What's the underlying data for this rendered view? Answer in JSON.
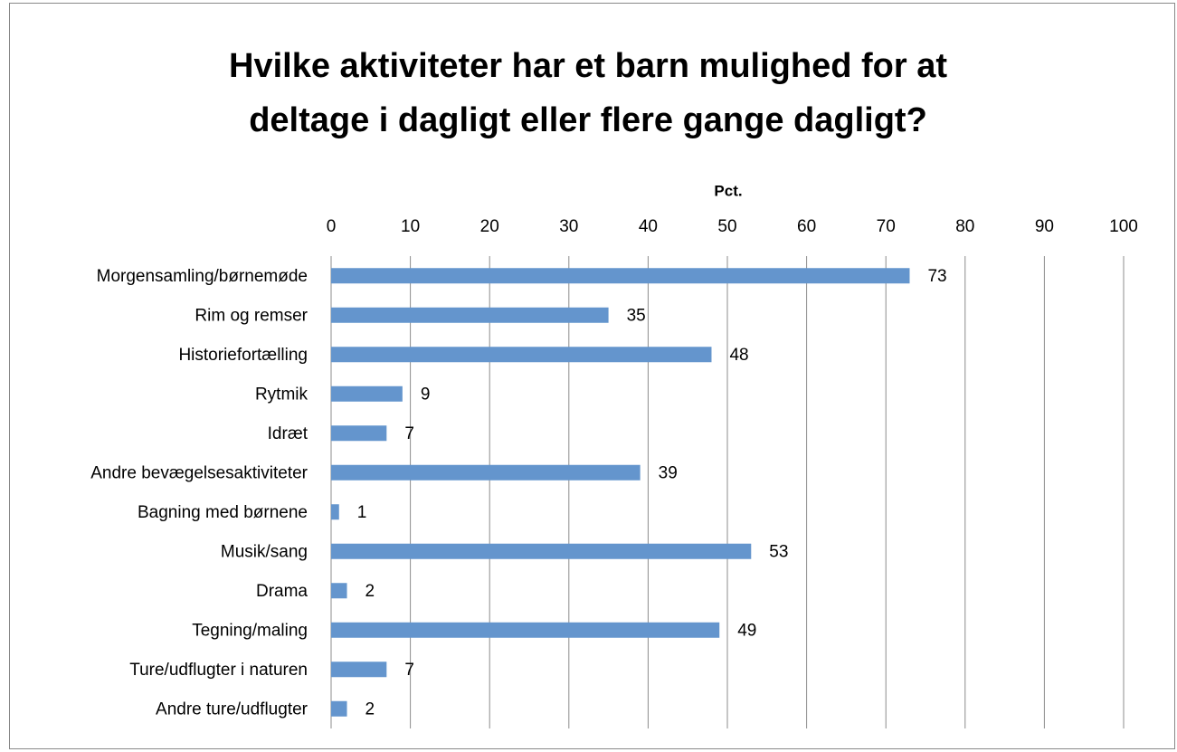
{
  "chart_data": {
    "type": "barh",
    "title": [
      "Hvilke aktiviteter har et barn mulighed for at",
      "deltage i dagligt eller flere gange dagligt?"
    ],
    "x_label": "Pct.",
    "categories": [
      "Morgensamling/børnemøde",
      "Rim og remser",
      "Historiefortælling",
      "Rytmik",
      "Idræt",
      "Andre bevægelsesaktiviteter",
      "Bagning med børnene",
      "Musik/sang",
      "Drama",
      "Tegning/maling",
      "Ture/udflugter i naturen",
      "Andre ture/udflugter"
    ],
    "values": [
      73,
      35,
      48,
      9,
      7,
      39,
      1,
      53,
      2,
      49,
      7,
      2
    ],
    "color": "#6495cd",
    "xlim": [
      0,
      100
    ],
    "xticks": [
      0,
      10,
      20,
      30,
      40,
      50,
      60,
      70,
      80,
      90,
      100
    ],
    "grid": true
  }
}
